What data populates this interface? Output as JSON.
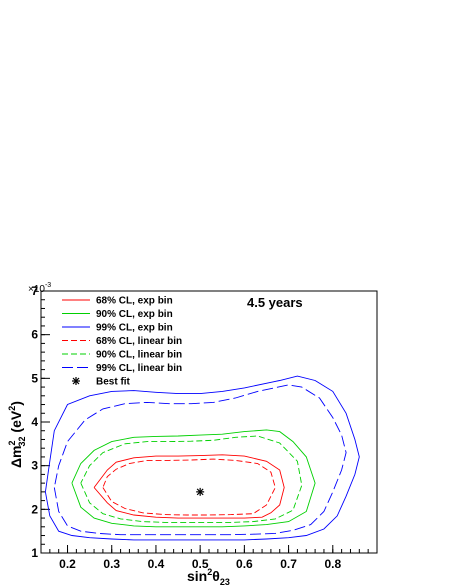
{
  "chart_data": {
    "type": "line",
    "xlabel": "sin²θ₂₃",
    "xlabel_parts": {
      "base": "sin",
      "sup": "2",
      "sym": "θ",
      "sub": "23"
    },
    "ylabel": "Δm²₃₂ (eV²)",
    "ylabel_parts": {
      "pre": "Δm",
      "sup": "2",
      "sub": "32",
      "post": " (eV",
      "sup2": "2",
      "close": ")"
    },
    "y_multiplier": "×10",
    "y_multiplier_exp": "-3",
    "xlim": [
      0.14,
      0.9
    ],
    "ylim": [
      1,
      7
    ],
    "x_ticks": [
      0.2,
      0.3,
      0.4,
      0.5,
      0.6,
      0.7,
      0.8
    ],
    "x_tick_labels": [
      "0.2",
      "0.3",
      "0.4",
      "0.5",
      "0.6",
      "0.7",
      "0.8"
    ],
    "y_ticks": [
      1,
      2,
      3,
      4,
      5,
      6,
      7
    ],
    "y_tick_labels": [
      "1",
      "2",
      "3",
      "4",
      "5",
      "6",
      "7"
    ],
    "grid": false,
    "legend_position": "top-left",
    "annotation": "4.5 years",
    "colors": {
      "red": "#ff0000",
      "green": "#00d000",
      "blue": "#0000ff",
      "marker": "#000000"
    },
    "series": [
      {
        "name": "68% CL, exp bin",
        "color": "#ff0000",
        "dash": "solid",
        "x": [
          0.26,
          0.29,
          0.31,
          0.35,
          0.4,
          0.45,
          0.5,
          0.55,
          0.6,
          0.64,
          0.66,
          0.68,
          0.69,
          0.68,
          0.65,
          0.6,
          0.55,
          0.5,
          0.45,
          0.4,
          0.35,
          0.31,
          0.29,
          0.26
        ],
        "y": [
          2.5,
          2.15,
          1.97,
          1.87,
          1.82,
          1.8,
          1.8,
          1.8,
          1.8,
          1.82,
          1.92,
          2.1,
          2.5,
          2.9,
          3.1,
          3.22,
          3.25,
          3.23,
          3.22,
          3.22,
          3.18,
          3.08,
          2.9,
          2.5
        ]
      },
      {
        "name": "90% CL, exp bin",
        "color": "#00d000",
        "dash": "solid",
        "x": [
          0.21,
          0.23,
          0.26,
          0.3,
          0.35,
          0.4,
          0.45,
          0.5,
          0.55,
          0.6,
          0.65,
          0.7,
          0.74,
          0.76,
          0.74,
          0.71,
          0.68,
          0.65,
          0.6,
          0.55,
          0.5,
          0.45,
          0.4,
          0.35,
          0.3,
          0.26,
          0.23,
          0.21
        ],
        "y": [
          2.6,
          2.05,
          1.8,
          1.68,
          1.62,
          1.6,
          1.6,
          1.6,
          1.6,
          1.62,
          1.65,
          1.72,
          1.95,
          2.6,
          3.2,
          3.55,
          3.78,
          3.82,
          3.78,
          3.72,
          3.7,
          3.68,
          3.67,
          3.65,
          3.55,
          3.35,
          3.05,
          2.6
        ]
      },
      {
        "name": "99% CL, exp bin",
        "color": "#0000ff",
        "dash": "solid",
        "x": [
          0.15,
          0.16,
          0.18,
          0.21,
          0.25,
          0.3,
          0.35,
          0.4,
          0.45,
          0.5,
          0.55,
          0.6,
          0.65,
          0.7,
          0.74,
          0.78,
          0.81,
          0.83,
          0.85,
          0.86,
          0.85,
          0.83,
          0.8,
          0.76,
          0.72,
          0.68,
          0.6,
          0.55,
          0.5,
          0.45,
          0.4,
          0.35,
          0.3,
          0.25,
          0.2,
          0.17,
          0.16,
          0.15
        ],
        "y": [
          2.4,
          1.85,
          1.5,
          1.4,
          1.35,
          1.32,
          1.3,
          1.3,
          1.3,
          1.3,
          1.3,
          1.3,
          1.32,
          1.35,
          1.4,
          1.55,
          1.85,
          2.3,
          2.8,
          3.2,
          3.6,
          4.2,
          4.7,
          4.95,
          5.05,
          4.95,
          4.78,
          4.7,
          4.65,
          4.65,
          4.68,
          4.72,
          4.7,
          4.6,
          4.4,
          3.8,
          3.1,
          2.4
        ]
      },
      {
        "name": "68% CL, linear bin",
        "color": "#ff0000",
        "dash": "dash",
        "x": [
          0.28,
          0.3,
          0.33,
          0.37,
          0.42,
          0.47,
          0.52,
          0.57,
          0.62,
          0.65,
          0.67,
          0.66,
          0.63,
          0.58,
          0.53,
          0.48,
          0.43,
          0.38,
          0.34,
          0.31,
          0.29,
          0.28
        ],
        "y": [
          2.5,
          2.18,
          2.02,
          1.92,
          1.88,
          1.87,
          1.87,
          1.88,
          1.9,
          2.1,
          2.5,
          2.85,
          3.05,
          3.12,
          3.15,
          3.13,
          3.12,
          3.12,
          3.05,
          2.92,
          2.75,
          2.5
        ]
      },
      {
        "name": "90% CL, linear bin",
        "color": "#00d000",
        "dash": "dash",
        "x": [
          0.23,
          0.25,
          0.28,
          0.32,
          0.37,
          0.42,
          0.47,
          0.52,
          0.57,
          0.62,
          0.67,
          0.71,
          0.73,
          0.72,
          0.68,
          0.63,
          0.58,
          0.53,
          0.48,
          0.43,
          0.38,
          0.33,
          0.28,
          0.25,
          0.23
        ],
        "y": [
          2.6,
          2.15,
          1.9,
          1.78,
          1.72,
          1.7,
          1.7,
          1.7,
          1.7,
          1.72,
          1.78,
          1.98,
          2.55,
          3.1,
          3.52,
          3.68,
          3.65,
          3.58,
          3.56,
          3.55,
          3.55,
          3.5,
          3.3,
          3.0,
          2.6
        ]
      },
      {
        "name": "99% CL, linear bin",
        "color": "#0000ff",
        "dash": "longdash",
        "x": [
          0.17,
          0.18,
          0.2,
          0.23,
          0.27,
          0.32,
          0.37,
          0.42,
          0.47,
          0.52,
          0.57,
          0.62,
          0.67,
          0.71,
          0.75,
          0.78,
          0.8,
          0.82,
          0.83,
          0.82,
          0.8,
          0.77,
          0.73,
          0.7,
          0.63,
          0.58,
          0.53,
          0.48,
          0.43,
          0.38,
          0.33,
          0.28,
          0.24,
          0.2,
          0.18,
          0.17
        ],
        "y": [
          2.5,
          1.95,
          1.62,
          1.5,
          1.45,
          1.42,
          1.42,
          1.42,
          1.42,
          1.42,
          1.42,
          1.43,
          1.45,
          1.52,
          1.65,
          1.95,
          2.4,
          2.9,
          3.3,
          3.7,
          4.1,
          4.55,
          4.8,
          4.85,
          4.7,
          4.55,
          4.45,
          4.42,
          4.42,
          4.45,
          4.42,
          4.3,
          4.05,
          3.55,
          3.0,
          2.5
        ]
      },
      {
        "name": "Best fit",
        "color": "#000000",
        "marker": "star",
        "x": [
          0.5
        ],
        "y": [
          2.4
        ]
      }
    ]
  }
}
